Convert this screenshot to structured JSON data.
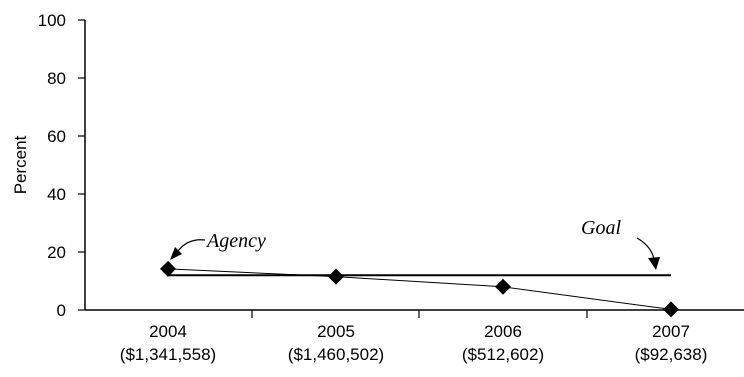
{
  "chart_data": {
    "type": "line",
    "categories": [
      "2004",
      "2005",
      "2006",
      "2007"
    ],
    "category_sublabels": [
      "($1,341,558)",
      "($1,460,502)",
      "($512,602)",
      "($92,638)"
    ],
    "ylabel": "Percent",
    "ylim": [
      0,
      100
    ],
    "yticks": [
      0,
      20,
      40,
      60,
      80,
      100
    ],
    "series": [
      {
        "name": "Agency",
        "values": [
          14.2,
          11.5,
          8.0,
          0.2
        ]
      },
      {
        "name": "Goal",
        "values": [
          12,
          12,
          12,
          12
        ]
      }
    ],
    "annotations": {
      "agency": "Agency",
      "goal": "Goal"
    }
  }
}
